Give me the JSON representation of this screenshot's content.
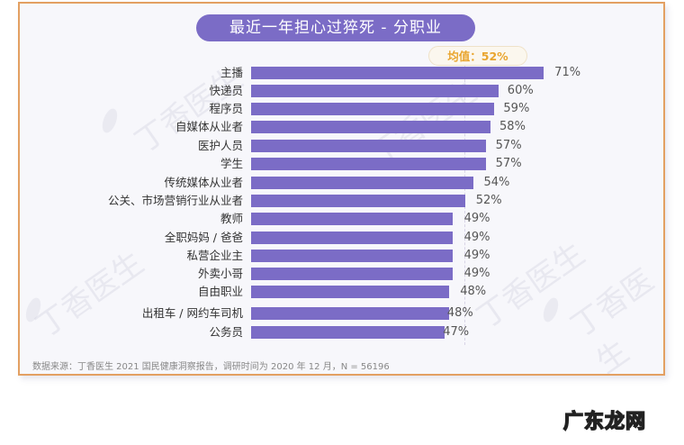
{
  "header": {
    "title": "最近一年担心过猝死 - 分职业",
    "mean_label": "均值：52%"
  },
  "footer": {
    "source": "数据来源：丁香医生 2021 国民健康洞察报告，调研时间为 2020 年 12 月，N = 56196"
  },
  "watermark": {
    "text": "丁香医生"
  },
  "site_logo": {
    "text": "广东龙网"
  },
  "colors": {
    "bar": "#7b6cc6",
    "title_bg": "#7b6cc6",
    "mean_text": "#e9a52e",
    "border": "#e3a062",
    "background": "#f7f7fb"
  },
  "chart_data": {
    "type": "bar",
    "orientation": "horizontal",
    "title": "最近一年担心过猝死 - 分职业",
    "xlabel": "",
    "ylabel": "",
    "categories": [
      "主播",
      "快递员",
      "程序员",
      "自媒体从业者",
      "医护人员",
      "学生",
      "传统媒体从业者",
      "公关、市场营销行业从业者",
      "教师",
      "全职妈妈 / 爸爸",
      "私营企业主",
      "外卖小哥",
      "自由职业",
      "出租车 / 网约车司机",
      "公务员"
    ],
    "values": [
      71,
      60,
      59,
      58,
      57,
      57,
      54,
      52,
      49,
      49,
      49,
      49,
      48,
      48,
      47
    ],
    "value_labels": [
      "71%",
      "60%",
      "59%",
      "58%",
      "57%",
      "57%",
      "54%",
      "52%",
      "49%",
      "49%",
      "49%",
      "49%",
      "48%",
      "48%",
      "47%"
    ],
    "unit": "%",
    "reference_line": {
      "label": "均值：52%",
      "value": 52
    },
    "grid": false,
    "legend": null,
    "xlim": [
      0,
      75
    ]
  }
}
